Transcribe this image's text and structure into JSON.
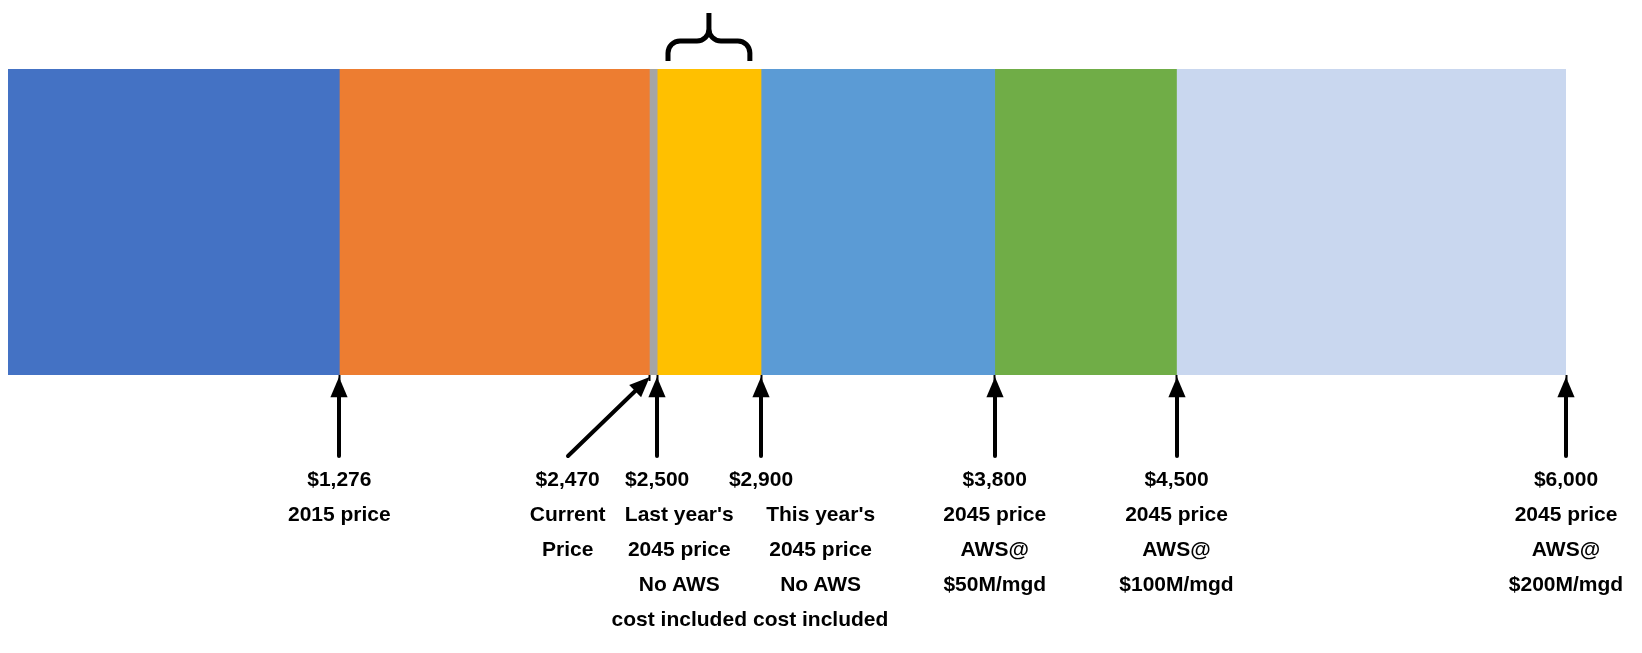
{
  "chart_data": {
    "type": "bar",
    "orientation": "horizontal",
    "stacked": true,
    "categories": [
      null
    ],
    "series": [
      {
        "color": "#4472c4",
        "values": [
          1276
        ]
      },
      {
        "color": "#ed7d31",
        "values": [
          1194
        ]
      },
      {
        "color": "#a5a5a5",
        "values": [
          30
        ]
      },
      {
        "color": "#ffc000",
        "values": [
          400
        ]
      },
      {
        "color": "#5b9bd5",
        "values": [
          900
        ]
      },
      {
        "color": "#70ad47",
        "values": [
          700
        ]
      },
      {
        "color": "#c9d7ef",
        "values": [
          1500
        ]
      }
    ],
    "xlim": [
      0,
      6000
    ],
    "xticks": [
      {
        "value": 1276,
        "label": "$1,276"
      },
      {
        "value": 2470,
        "label": null
      },
      {
        "value": 2500,
        "label": "$2,500"
      },
      {
        "value": 2900,
        "label": "$2,900"
      },
      {
        "value": 3800,
        "label": "$3,800"
      },
      {
        "value": 4500,
        "label": "$4,500"
      },
      {
        "value": 6000,
        "label": "$6,000"
      }
    ],
    "annotations": [
      "2015 price",
      "$2,470\nCurrent\nPrice",
      "Last year's\n2045 price\nNo AWS\ncost included",
      "This year's\n2045 price\nNo AWS\ncost included",
      "2045 price\nAWS@\n$50M/mgd",
      "2045 price\nAWS@\n$100M/mgd",
      "2045 price\nAWS@\n$200M/mgd"
    ],
    "tick_labels": "x"
  }
}
